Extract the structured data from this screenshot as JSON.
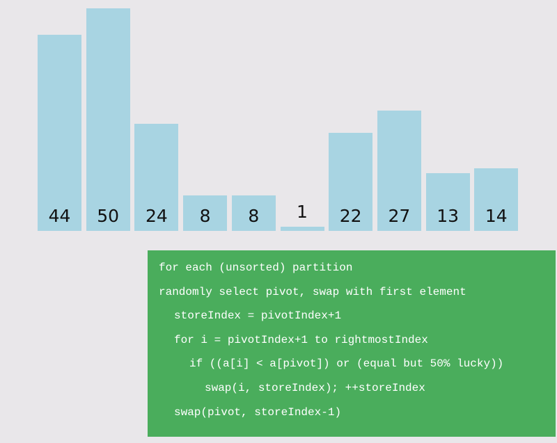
{
  "array": {
    "values": [
      44,
      50,
      24,
      8,
      8,
      1,
      22,
      27,
      13,
      14
    ],
    "bar_color": "#a8d4e2",
    "background": "#e9e7ea"
  },
  "pseudocode": {
    "background": "#4aad5c",
    "text_color": "#ffffff",
    "lines": [
      {
        "text": "for each (unsorted) partition",
        "indent": 0
      },
      {
        "text": "randomly select pivot, swap with first element",
        "indent": 0
      },
      {
        "text": "storeIndex = pivotIndex+1",
        "indent": 1
      },
      {
        "text": "for i = pivotIndex+1 to rightmostIndex",
        "indent": 1
      },
      {
        "text": "if ((a[i] < a[pivot]) or (equal but 50% lucky))",
        "indent": 2
      },
      {
        "text": "swap(i, storeIndex); ++storeIndex",
        "indent": 3
      },
      {
        "text": "swap(pivot, storeIndex-1)",
        "indent": 1
      }
    ]
  }
}
